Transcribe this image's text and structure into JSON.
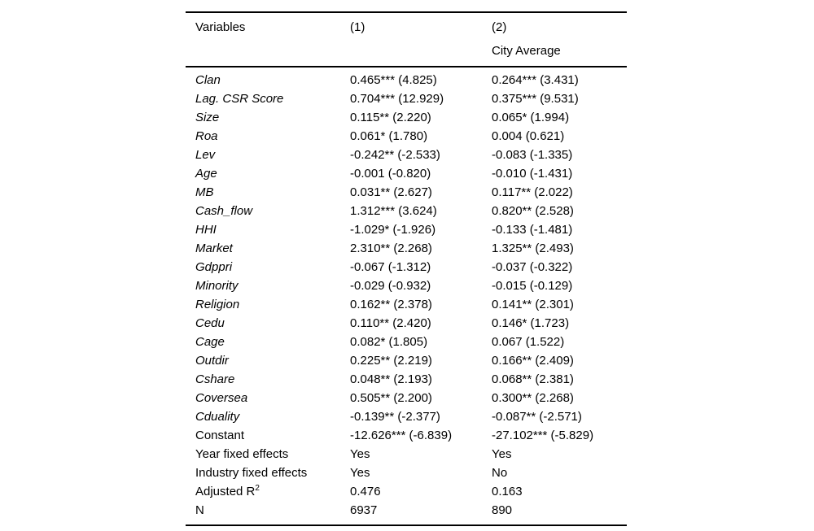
{
  "table": {
    "header": {
      "variables": "Variables",
      "col1": "(1)",
      "col1_sub": "",
      "col2": "(2)",
      "col2_sub": "City Average"
    },
    "rows": [
      {
        "variable": "Clan",
        "italic": true,
        "c1": "0.465*** (4.825)",
        "c2": "0.264*** (3.431)"
      },
      {
        "variable": "Lag. CSR Score",
        "italic": true,
        "c1": "0.704*** (12.929)",
        "c2": "0.375*** (9.531)"
      },
      {
        "variable": "Size",
        "italic": true,
        "c1": "0.115** (2.220)",
        "c2": "0.065* (1.994)"
      },
      {
        "variable": "Roa",
        "italic": true,
        "c1": "0.061* (1.780)",
        "c2": "0.004 (0.621)"
      },
      {
        "variable": "Lev",
        "italic": true,
        "c1": "-0.242** (-2.533)",
        "c2": "-0.083 (-1.335)"
      },
      {
        "variable": "Age",
        "italic": true,
        "c1": "-0.001 (-0.820)",
        "c2": "-0.010 (-1.431)"
      },
      {
        "variable": "MB",
        "italic": true,
        "c1": "0.031** (2.627)",
        "c2": "0.117** (2.022)"
      },
      {
        "variable": "Cash_flow",
        "italic": true,
        "c1": "1.312*** (3.624)",
        "c2": "0.820** (2.528)"
      },
      {
        "variable": "HHI",
        "italic": true,
        "c1": "-1.029* (-1.926)",
        "c2": "-0.133 (-1.481)"
      },
      {
        "variable": "Market",
        "italic": true,
        "c1": "2.310** (2.268)",
        "c2": "1.325** (2.493)"
      },
      {
        "variable": "Gdppri",
        "italic": true,
        "c1": "-0.067 (-1.312)",
        "c2": "-0.037 (-0.322)"
      },
      {
        "variable": "Minority",
        "italic": true,
        "c1": "-0.029 (-0.932)",
        "c2": "-0.015 (-0.129)"
      },
      {
        "variable": "Religion",
        "italic": true,
        "c1": "0.162** (2.378)",
        "c2": "0.141** (2.301)"
      },
      {
        "variable": "Cedu",
        "italic": true,
        "c1": "0.110** (2.420)",
        "c2": "0.146* (1.723)"
      },
      {
        "variable": "Cage",
        "italic": true,
        "c1": "0.082* (1.805)",
        "c2": "0.067 (1.522)"
      },
      {
        "variable": "Outdir",
        "italic": true,
        "c1": "0.225** (2.219)",
        "c2": "0.166** (2.409)"
      },
      {
        "variable": "Cshare",
        "italic": true,
        "c1": "0.048** (2.193)",
        "c2": "0.068** (2.381)"
      },
      {
        "variable": "Coversea",
        "italic": true,
        "c1": "0.505** (2.200)",
        "c2": "0.300** (2.268)"
      },
      {
        "variable": "Cduality",
        "italic": true,
        "c1": "-0.139** (-2.377)",
        "c2": "-0.087** (-2.571)"
      },
      {
        "variable": "Constant",
        "italic": false,
        "c1": "-12.626*** (-6.839)",
        "c2": "-27.102*** (-5.829)"
      },
      {
        "variable": "Year fixed effects",
        "italic": false,
        "c1": "Yes",
        "c2": "Yes"
      },
      {
        "variable": "Industry fixed effects",
        "italic": false,
        "c1": "Yes",
        "c2": "No"
      },
      {
        "variable": "Adjusted R",
        "sup": "2",
        "italic": false,
        "c1": "0.476",
        "c2": "0.163"
      },
      {
        "variable": "N",
        "italic": false,
        "c1": "6937",
        "c2": "890"
      }
    ]
  }
}
